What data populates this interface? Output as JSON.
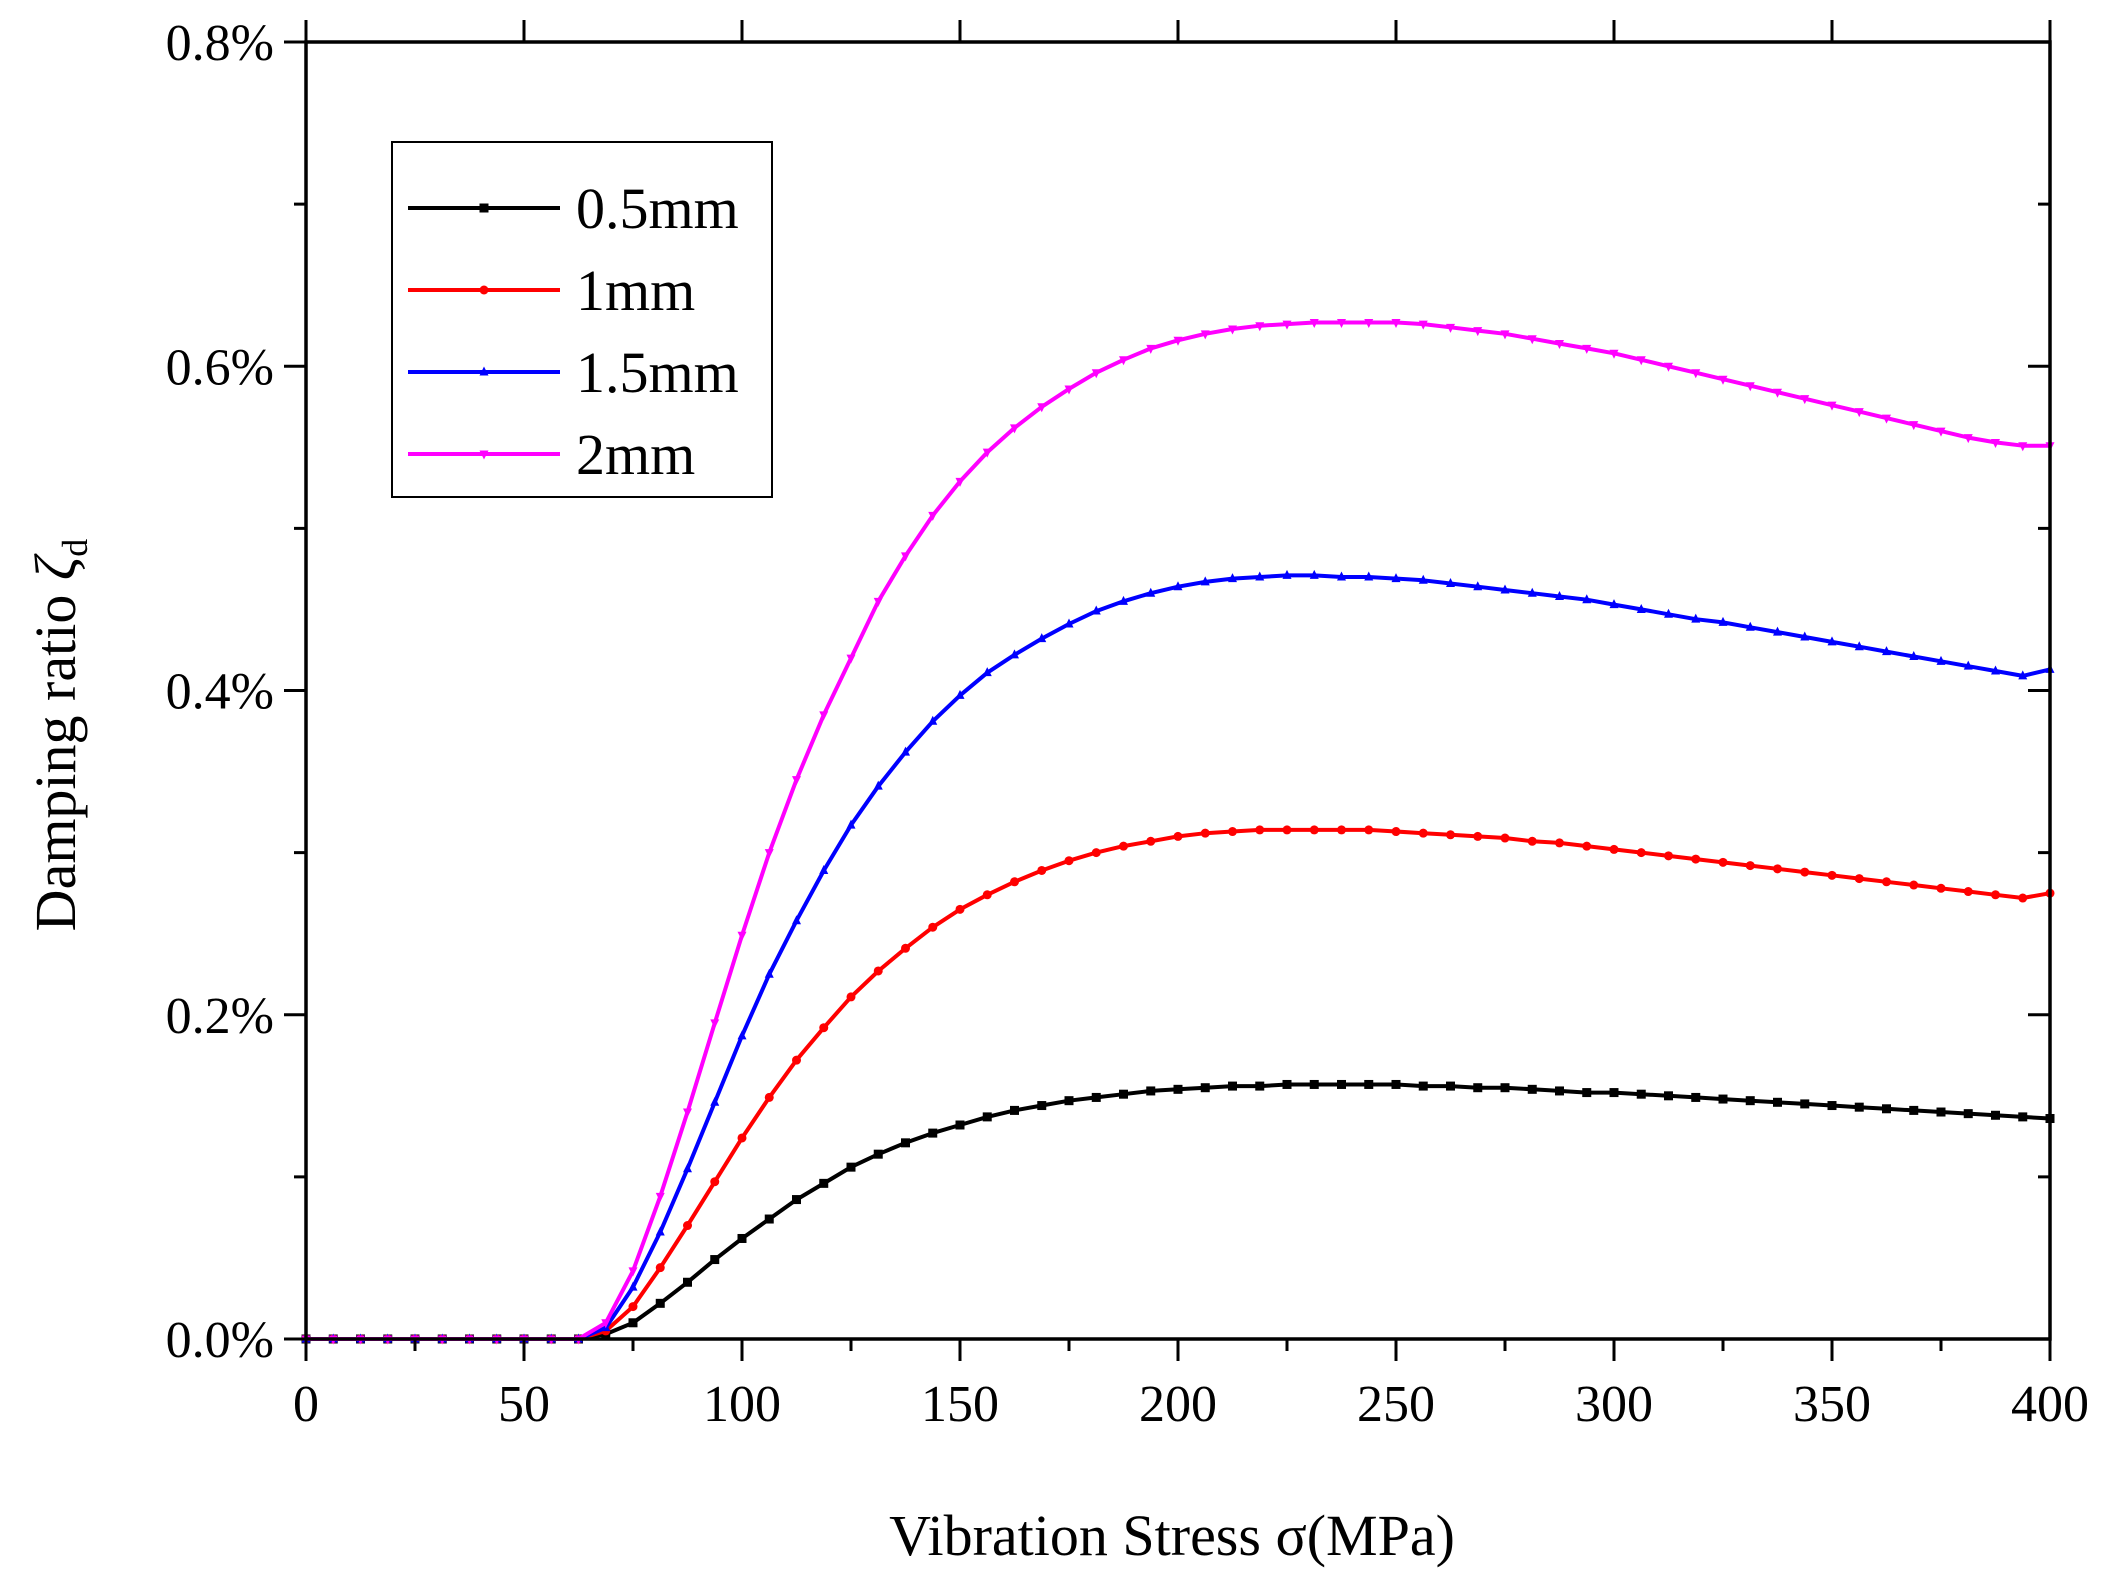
{
  "chart_data": {
    "type": "line",
    "title": "",
    "xlabel": "Vibration Stress σ(MPa)",
    "ylabel_main": "Damping ratio ",
    "ylabel_symbol": "ζ",
    "ylabel_subscript": "d",
    "xlim": [
      0,
      400
    ],
    "ylim": [
      0,
      0.8
    ],
    "xticks": [
      0,
      50,
      100,
      150,
      200,
      250,
      300,
      350,
      400
    ],
    "xtick_labels": [
      "0",
      "50",
      "100",
      "150",
      "200",
      "250",
      "300",
      "350",
      "400"
    ],
    "yticks": [
      0,
      0.2,
      0.4,
      0.6,
      0.8
    ],
    "ytick_labels": [
      "0.0%",
      "0.2%",
      "0.4%",
      "0.6%",
      "0.8%"
    ],
    "grid": false,
    "legend_position": "top-left",
    "x_start": 0,
    "x_step": 6.25,
    "series": [
      {
        "name": "0.5mm",
        "color": "#000000",
        "marker": "square",
        "values": [
          0,
          0,
          0,
          0,
          0,
          0,
          0,
          0,
          0,
          0,
          0,
          0.003,
          0.01,
          0.022,
          0.035,
          0.049,
          0.062,
          0.074,
          0.086,
          0.096,
          0.106,
          0.114,
          0.121,
          0.127,
          0.132,
          0.137,
          0.141,
          0.144,
          0.147,
          0.149,
          0.151,
          0.153,
          0.154,
          0.155,
          0.156,
          0.156,
          0.157,
          0.157,
          0.157,
          0.157,
          0.157,
          0.156,
          0.156,
          0.155,
          0.155,
          0.154,
          0.153,
          0.152,
          0.152,
          0.151,
          0.15,
          0.149,
          0.148,
          0.147,
          0.146,
          0.145,
          0.144,
          0.143,
          0.142,
          0.141,
          0.14,
          0.139,
          0.138,
          0.137,
          0.136
        ]
      },
      {
        "name": "1mm",
        "color": "#ff0000",
        "marker": "circle",
        "values": [
          0,
          0,
          0,
          0,
          0,
          0,
          0,
          0,
          0,
          0,
          0,
          0.005,
          0.02,
          0.044,
          0.07,
          0.097,
          0.124,
          0.149,
          0.172,
          0.192,
          0.211,
          0.227,
          0.241,
          0.254,
          0.265,
          0.274,
          0.282,
          0.289,
          0.295,
          0.3,
          0.304,
          0.307,
          0.31,
          0.312,
          0.313,
          0.314,
          0.314,
          0.314,
          0.314,
          0.314,
          0.313,
          0.312,
          0.311,
          0.31,
          0.309,
          0.307,
          0.306,
          0.304,
          0.302,
          0.3,
          0.298,
          0.296,
          0.294,
          0.292,
          0.29,
          0.288,
          0.286,
          0.284,
          0.282,
          0.28,
          0.278,
          0.276,
          0.274,
          0.272,
          0.275
        ]
      },
      {
        "name": "1.5mm",
        "color": "#0000ff",
        "marker": "triangle-up",
        "values": [
          0,
          0,
          0,
          0,
          0,
          0,
          0,
          0,
          0,
          0,
          0,
          0.007,
          0.032,
          0.066,
          0.105,
          0.146,
          0.187,
          0.225,
          0.258,
          0.289,
          0.317,
          0.341,
          0.362,
          0.381,
          0.397,
          0.411,
          0.422,
          0.432,
          0.441,
          0.449,
          0.455,
          0.46,
          0.464,
          0.467,
          0.469,
          0.47,
          0.471,
          0.471,
          0.47,
          0.47,
          0.469,
          0.468,
          0.466,
          0.464,
          0.462,
          0.46,
          0.458,
          0.456,
          0.453,
          0.45,
          0.447,
          0.444,
          0.442,
          0.439,
          0.436,
          0.433,
          0.43,
          0.427,
          0.424,
          0.421,
          0.418,
          0.415,
          0.412,
          0.409,
          0.413
        ]
      },
      {
        "name": "2mm",
        "color": "#ff00ff",
        "marker": "triangle-down",
        "values": [
          0,
          0,
          0,
          0,
          0,
          0,
          0,
          0,
          0,
          0,
          0,
          0.01,
          0.042,
          0.088,
          0.14,
          0.195,
          0.249,
          0.3,
          0.345,
          0.385,
          0.42,
          0.455,
          0.483,
          0.508,
          0.529,
          0.547,
          0.562,
          0.575,
          0.586,
          0.596,
          0.604,
          0.611,
          0.616,
          0.62,
          0.623,
          0.625,
          0.626,
          0.627,
          0.627,
          0.627,
          0.627,
          0.626,
          0.624,
          0.622,
          0.62,
          0.617,
          0.614,
          0.611,
          0.608,
          0.604,
          0.6,
          0.596,
          0.592,
          0.588,
          0.584,
          0.58,
          0.576,
          0.572,
          0.568,
          0.564,
          0.56,
          0.556,
          0.553,
          0.551,
          0.551
        ]
      }
    ]
  }
}
